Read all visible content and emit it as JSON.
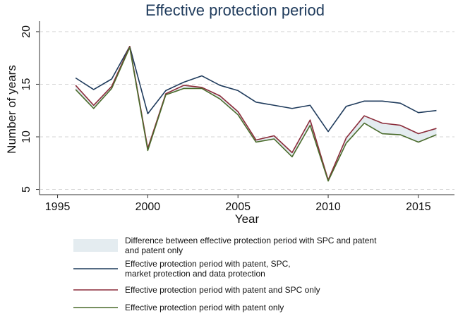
{
  "chart_data": {
    "type": "line",
    "title": "Effective protection period",
    "xlabel": "Year",
    "ylabel": "Number of years",
    "xlim": [
      1994,
      2017
    ],
    "ylim": [
      4.5,
      21
    ],
    "xticks": [
      1995,
      2000,
      2005,
      2010,
      2015
    ],
    "yticks": [
      5,
      10,
      15,
      20
    ],
    "grid": true,
    "legend_position": "bottom",
    "x": [
      1996,
      1997,
      1998,
      1999,
      2000,
      2001,
      2002,
      2003,
      2004,
      2005,
      2006,
      2007,
      2008,
      2009,
      2010,
      2011,
      2012,
      2013,
      2014,
      2015,
      2016
    ],
    "series": [
      {
        "name": "Effective protection period with patent, SPC, market protection and data protection",
        "color": "#1f3b5c",
        "values": [
          15.6,
          14.5,
          15.5,
          18.6,
          12.2,
          14.4,
          15.2,
          15.8,
          14.9,
          14.4,
          13.3,
          13.0,
          12.7,
          13.0,
          10.5,
          12.9,
          13.4,
          13.4,
          13.2,
          12.3,
          12.5
        ]
      },
      {
        "name": "Effective protection period with patent and SPC only",
        "color": "#8b2c3a",
        "values": [
          14.9,
          13.0,
          14.8,
          18.6,
          8.9,
          14.1,
          14.9,
          14.7,
          13.9,
          12.4,
          9.7,
          10.1,
          8.5,
          11.6,
          5.9,
          9.9,
          12.0,
          11.3,
          11.1,
          10.3,
          10.8
        ]
      },
      {
        "name": "Effective protection period with patent only",
        "color": "#4a6b2c",
        "values": [
          14.5,
          12.7,
          14.6,
          18.5,
          8.7,
          14.0,
          14.6,
          14.6,
          13.6,
          12.1,
          9.5,
          9.8,
          8.1,
          11.1,
          5.8,
          9.4,
          11.3,
          10.3,
          10.2,
          9.5,
          10.2
        ]
      }
    ],
    "band": {
      "name": "Difference between effective protection period with SPC and patent and patent only",
      "color": "#e4ecf0",
      "upper_series": 1,
      "lower_series": 2
    },
    "legend": [
      {
        "kind": "band",
        "line1": "Difference between effective protection period with SPC and patent",
        "line2": "and patent only"
      },
      {
        "kind": "line",
        "series": 0,
        "line1": "Effective protection period with patent, SPC,",
        "line2": "market protection and data protection"
      },
      {
        "kind": "line",
        "series": 1,
        "line1": "Effective protection period with patent and SPC only",
        "line2": ""
      },
      {
        "kind": "line",
        "series": 2,
        "line1": "Effective protection period with patent only",
        "line2": ""
      }
    ]
  }
}
